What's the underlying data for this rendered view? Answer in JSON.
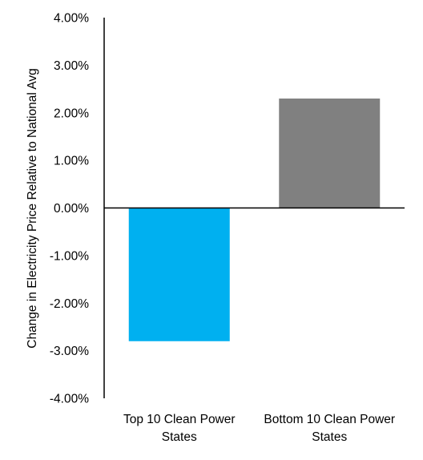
{
  "chart_data": {
    "type": "bar",
    "title": "",
    "xlabel": "",
    "ylabel": "Change in Electricity Price Relative to National Avg",
    "ylim": [
      -0.04,
      0.04
    ],
    "yticks": [
      {
        "value": 0.04,
        "label": "4.00%"
      },
      {
        "value": 0.03,
        "label": "3.00%"
      },
      {
        "value": 0.02,
        "label": "2.00%"
      },
      {
        "value": 0.01,
        "label": "1.00%"
      },
      {
        "value": 0.0,
        "label": "0.00%"
      },
      {
        "value": -0.01,
        "label": "-1.00%"
      },
      {
        "value": -0.02,
        "label": "-2.00%"
      },
      {
        "value": -0.03,
        "label": "-3.00%"
      },
      {
        "value": -0.04,
        "label": "-4.00%"
      }
    ],
    "categories": [
      [
        "Top 10 Clean Power",
        "States"
      ],
      [
        "Bottom 10 Clean Power",
        "States"
      ]
    ],
    "values": [
      -0.028,
      0.023
    ],
    "colors": [
      "#00B0F0",
      "#808080"
    ],
    "grid": false,
    "legend": "none"
  }
}
